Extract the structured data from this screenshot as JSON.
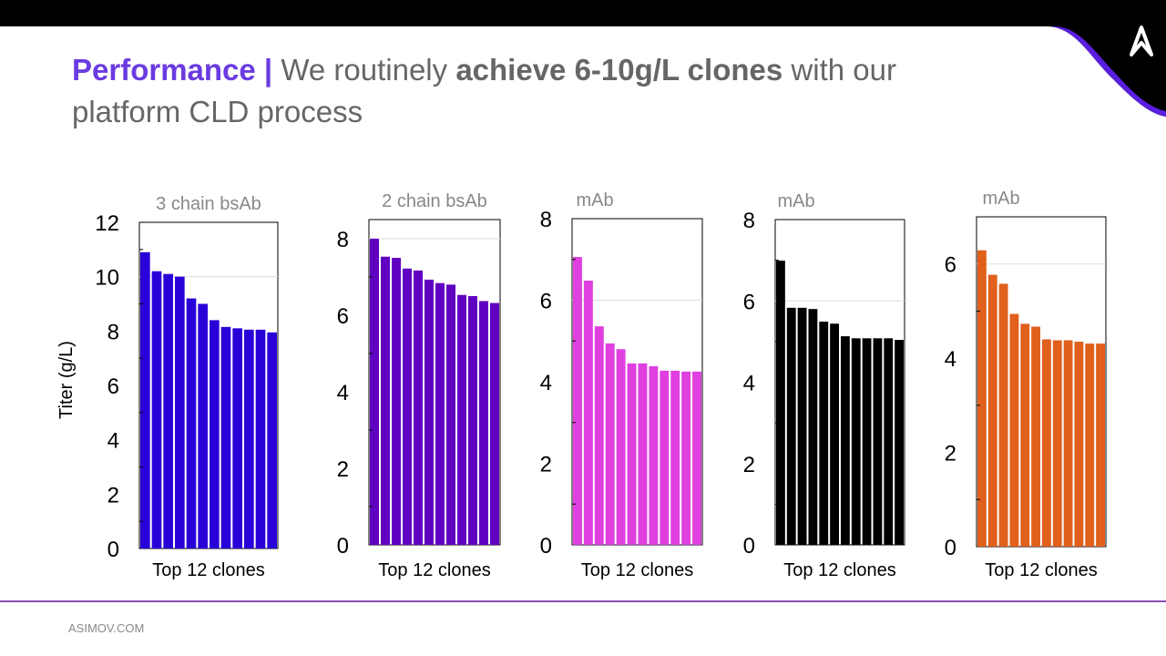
{
  "slide": {
    "title_accent": "Performance |",
    "title_part1": " We routinely ",
    "title_bold": "achieve 6-10g/L clones",
    "title_part2": " with our platform CLD process",
    "footer": "ASIMOV.COM",
    "logo_text": "A"
  },
  "chart_data": [
    {
      "type": "bar",
      "title": "3 chain bsAb",
      "xlabel": "Top 12 clones",
      "ylabel": "Titer (g/L)",
      "ylim": [
        0,
        12
      ],
      "yticks": [
        0,
        2,
        4,
        6,
        8,
        10,
        12
      ],
      "grid": [
        10
      ],
      "color": "#2a00d8",
      "values": [
        10.9,
        10.2,
        10.1,
        10.0,
        9.2,
        9.0,
        8.4,
        8.15,
        8.1,
        8.05,
        8.05,
        7.95
      ]
    },
    {
      "type": "bar",
      "title": "2 chain bsAb",
      "xlabel": "Top 12 clones",
      "ylabel": "",
      "ylim": [
        0,
        8.5
      ],
      "yticks": [
        0,
        2,
        4,
        6,
        8
      ],
      "grid": [
        8
      ],
      "color": "#6000c0",
      "values": [
        8.0,
        7.53,
        7.5,
        7.22,
        7.17,
        6.93,
        6.84,
        6.8,
        6.53,
        6.5,
        6.37,
        6.32
      ]
    },
    {
      "type": "bar",
      "title": "mAb",
      "xlabel": "Top 12 clones",
      "ylabel": "",
      "ylim": [
        0,
        8
      ],
      "yticks": [
        0,
        2,
        4,
        6,
        8
      ],
      "grid": [
        6
      ],
      "color": "#e040e0",
      "values": [
        7.06,
        6.48,
        5.36,
        4.94,
        4.8,
        4.45,
        4.45,
        4.38,
        4.27,
        4.27,
        4.25,
        4.25
      ]
    },
    {
      "type": "bar",
      "title": "mAb",
      "xlabel": "Top 12 clones",
      "ylabel": "",
      "ylim": [
        0,
        8
      ],
      "yticks": [
        0,
        2,
        4,
        6,
        8
      ],
      "grid": [
        6
      ],
      "color": "#000000",
      "values": [
        6.99,
        5.83,
        5.83,
        5.8,
        5.49,
        5.44,
        5.13,
        5.08,
        5.08,
        5.08,
        5.08,
        5.04
      ]
    },
    {
      "type": "bar",
      "title": "mAb",
      "xlabel": "Top 12 clones",
      "ylabel": "",
      "ylim": [
        0,
        7
      ],
      "yticks": [
        0,
        2,
        4,
        6
      ],
      "grid": [
        6
      ],
      "color": "#e0601c",
      "values": [
        6.29,
        5.77,
        5.58,
        4.94,
        4.73,
        4.67,
        4.4,
        4.38,
        4.38,
        4.35,
        4.31,
        4.31
      ]
    }
  ]
}
